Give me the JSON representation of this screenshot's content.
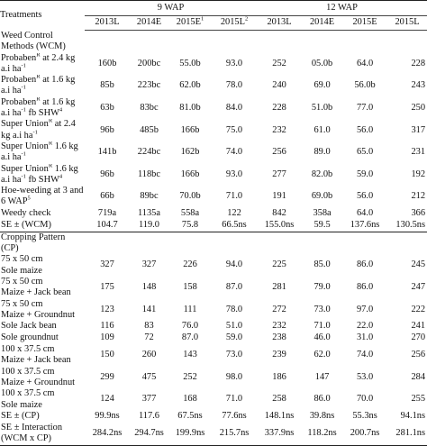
{
  "header": {
    "treatments": "Treatments",
    "group_9": "9 WAP",
    "group_12": "12 WAP",
    "years": [
      "2013L",
      "2014E",
      "2015E",
      "2015L",
      "2013L",
      "2014E",
      "2015E",
      "2015L"
    ]
  },
  "rows": [
    {
      "kind": "section",
      "label": [
        "Weed Control",
        "Methods (WCM)"
      ]
    },
    {
      "kind": "data",
      "label": [
        "Probaben at 2.4 kg",
        "a.i ha-1"
      ],
      "values": [
        "160b",
        "200bc",
        "55.0b",
        "93.0",
        "252",
        "05.0b",
        "64.0",
        "228"
      ]
    },
    {
      "kind": "data",
      "label": [
        "Probaben at 1.6 kg",
        "a.i ha-1"
      ],
      "values": [
        "85b",
        "223bc",
        "62.0b",
        "78.0",
        "240",
        "69.0",
        "56.0b",
        "243"
      ]
    },
    {
      "kind": "data",
      "label": [
        "Probaben at 1.6 kg",
        "a.i ha-1 fb SHW"
      ],
      "values": [
        "63b",
        "83bc",
        "81.0b",
        "84.0",
        "228",
        "51.0b",
        "77.0",
        "250"
      ]
    },
    {
      "kind": "data",
      "label": [
        "Super Union at 2.4",
        "kg a.i ha-1"
      ],
      "values": [
        "96b",
        "485b",
        "166b",
        "75.0",
        "232",
        "61.0",
        "56.0",
        "317"
      ]
    },
    {
      "kind": "data",
      "label": [
        "Super Union 1.6 kg",
        "a.i ha-1"
      ],
      "values": [
        "141b",
        "224bc",
        "162b",
        "74.0",
        "256",
        "89.0",
        "65.0",
        "231"
      ]
    },
    {
      "kind": "data",
      "label": [
        "Super Union 1.6 kg",
        "a.i ha-1 fb SHW"
      ],
      "values": [
        "96b",
        "118bc",
        "166b",
        "93.0",
        "277",
        "82.0b",
        "59.0",
        "192"
      ]
    },
    {
      "kind": "data",
      "label": [
        "Hoe-weeding at 3 and",
        "6 WAP"
      ],
      "values": [
        "66b",
        "89bc",
        "70.0b",
        "71.0",
        "191",
        "69.0b",
        "56.0",
        "212"
      ]
    },
    {
      "kind": "data",
      "label": [
        "Weedy check"
      ],
      "values": [
        "719a",
        "1135a",
        "558a",
        "122",
        "842",
        "358a",
        "64.0",
        "366"
      ]
    },
    {
      "kind": "data",
      "label": [
        "SE ± (WCM)"
      ],
      "values": [
        "104.7",
        "119.0",
        "75.8",
        "66.5ns",
        "155.0ns",
        "59.5",
        "137.6ns",
        "130.5ns"
      ]
    },
    {
      "kind": "section",
      "label": [
        "Cropping Pattern",
        "(CP)"
      ]
    },
    {
      "kind": "data",
      "label": [
        "75 x 50 cm",
        "Sole maize"
      ],
      "values": [
        "327",
        "327",
        "226",
        "94.0",
        "225",
        "85.0",
        "86.0",
        "245"
      ]
    },
    {
      "kind": "data",
      "label": [
        "75 x 50 cm",
        "Maize + Jack bean"
      ],
      "values": [
        "175",
        "148",
        "158",
        "87.0",
        "281",
        "79.0",
        "86.0",
        "247"
      ]
    },
    {
      "kind": "data",
      "label": [
        "75 x 50 cm",
        "Maize + Groundnut"
      ],
      "values": [
        "123",
        "141",
        "111",
        "78.0",
        "272",
        "73.0",
        "97.0",
        "222"
      ]
    },
    {
      "kind": "data",
      "label": [
        "Sole Jack bean"
      ],
      "values": [
        "116",
        "83",
        "76.0",
        "51.0",
        "232",
        "71.0",
        "22.0",
        "241"
      ]
    },
    {
      "kind": "data",
      "label": [
        "Sole groundnut"
      ],
      "values": [
        "109",
        "72",
        "87.0",
        "59.0",
        "238",
        "46.0",
        "31.0",
        "270"
      ]
    },
    {
      "kind": "data",
      "label": [
        "100 x 37.5 cm",
        "Maize + Jack bean"
      ],
      "values": [
        "150",
        "260",
        "143",
        "73.0",
        "239",
        "62.0",
        "74.0",
        "256"
      ]
    },
    {
      "kind": "data",
      "label": [
        "100 x 37.5 cm",
        "Maize + Groundnut"
      ],
      "values": [
        "299",
        "475",
        "252",
        "98.0",
        "186",
        "147",
        "53.0",
        "284"
      ]
    },
    {
      "kind": "data",
      "label": [
        "100 x 37.5 cm",
        "Sole maize"
      ],
      "values": [
        "124",
        "377",
        "168",
        "71.0",
        "258",
        "86.0",
        "70.0",
        "255"
      ]
    },
    {
      "kind": "data",
      "label": [
        "SE ± (CP)"
      ],
      "values": [
        "99.9ns",
        "117.6",
        "67.5ns",
        "77.6ns",
        "148.1ns",
        "39.8ns",
        "55.3ns",
        "94.1ns"
      ]
    },
    {
      "kind": "data",
      "label": [
        "SE ± Interaction",
        "(WCM x CP)"
      ],
      "values": [
        "284.2ns",
        "294.7ns",
        "199.9ns",
        "215.7ns",
        "337.9ns",
        "118.2ns",
        "200.7ns",
        "281.1ns"
      ]
    }
  ],
  "superscripts": {
    "r1": [
      "R",
      "",
      ""
    ],
    "r2": [
      "R",
      "",
      ""
    ],
    "r3": [
      "R",
      "",
      "4"
    ],
    "r4": [
      "R",
      "",
      ""
    ],
    "r5": [
      "R",
      "",
      ""
    ],
    "r6": [
      "R",
      "",
      "4"
    ],
    "r7": [
      "",
      "5"
    ],
    "h3": "1",
    "h4": "2"
  }
}
